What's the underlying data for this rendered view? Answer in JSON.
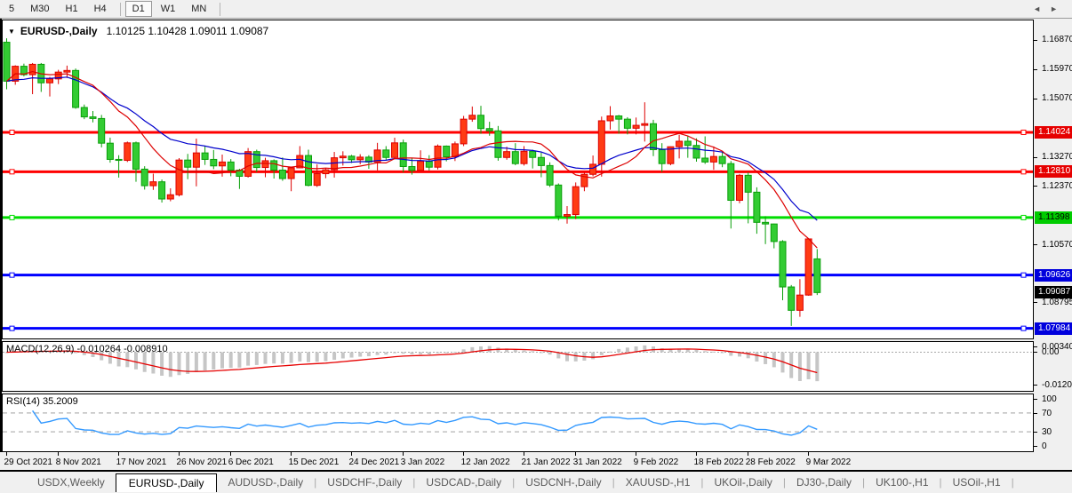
{
  "toolbar": {
    "timeframes": [
      {
        "label": "5",
        "active": false,
        "divider_after": false
      },
      {
        "label": "M30",
        "active": false,
        "divider_after": false
      },
      {
        "label": "H1",
        "active": false,
        "divider_after": false
      },
      {
        "label": "H4",
        "active": false,
        "divider_after": true
      },
      {
        "label": "D1",
        "active": true,
        "divider_after": false
      },
      {
        "label": "W1",
        "active": false,
        "divider_after": false
      },
      {
        "label": "MN",
        "active": false,
        "divider_after": true
      }
    ]
  },
  "chart": {
    "symbol": "EURUSD-,Daily",
    "ohlc_text": "1.10125 1.10428 1.09011 1.09087"
  },
  "chart_data": {
    "type": "candlestick",
    "symbol": "EURUSD-,Daily",
    "colors": {
      "bull_fill": "#ff3b14",
      "bull_stroke": "#dd0000",
      "bear_fill": "#33cc33",
      "bear_stroke": "#0a9e0a",
      "ma_fast": "#dd0000",
      "ma_slow": "#0000cc",
      "macd_hist": "#c6c6c6",
      "macd_signal": "#e60000",
      "rsi_line": "#3399ff",
      "level_dash": "#c0c0c0"
    },
    "ohlc": [
      [
        1.168,
        1.1692,
        1.1535,
        1.156
      ],
      [
        1.156,
        1.1609,
        1.1549,
        1.1606
      ],
      [
        1.1606,
        1.1614,
        1.1575,
        1.158
      ],
      [
        1.158,
        1.1616,
        1.152,
        1.1612
      ],
      [
        1.1612,
        1.1616,
        1.1527,
        1.1555
      ],
      [
        1.1555,
        1.1573,
        1.1513,
        1.1567
      ],
      [
        1.1567,
        1.1595,
        1.1551,
        1.1588
      ],
      [
        1.1588,
        1.1608,
        1.157,
        1.1593
      ],
      [
        1.1593,
        1.1599,
        1.1475,
        1.1479
      ],
      [
        1.1479,
        1.1488,
        1.1443,
        1.145
      ],
      [
        1.145,
        1.1468,
        1.1433,
        1.1445
      ],
      [
        1.1445,
        1.1456,
        1.1356,
        1.1369
      ],
      [
        1.1369,
        1.1386,
        1.1309,
        1.1319
      ],
      [
        1.1319,
        1.1332,
        1.1263,
        1.1316
      ],
      [
        1.1316,
        1.1374,
        1.1311,
        1.137
      ],
      [
        1.137,
        1.1374,
        1.125,
        1.1289
      ],
      [
        1.1289,
        1.1298,
        1.1226,
        1.1238
      ],
      [
        1.1238,
        1.1275,
        1.1225,
        1.125
      ],
      [
        1.125,
        1.1257,
        1.1186,
        1.1197
      ],
      [
        1.1197,
        1.123,
        1.119,
        1.121
      ],
      [
        1.121,
        1.1323,
        1.1205,
        1.1317
      ],
      [
        1.1317,
        1.1336,
        1.1258,
        1.1295
      ],
      [
        1.1295,
        1.1383,
        1.1236,
        1.1339
      ],
      [
        1.1339,
        1.136,
        1.1302,
        1.1319
      ],
      [
        1.1319,
        1.1348,
        1.1289,
        1.1299
      ],
      [
        1.1299,
        1.1334,
        1.1266,
        1.1311
      ],
      [
        1.1311,
        1.132,
        1.1267,
        1.1286
      ],
      [
        1.1286,
        1.129,
        1.1228,
        1.1267
      ],
      [
        1.1267,
        1.1354,
        1.1263,
        1.1343
      ],
      [
        1.1343,
        1.1349,
        1.128,
        1.1294
      ],
      [
        1.1294,
        1.1324,
        1.1264,
        1.1315
      ],
      [
        1.1315,
        1.1319,
        1.126,
        1.1286
      ],
      [
        1.1286,
        1.1325,
        1.1253,
        1.126
      ],
      [
        1.126,
        1.1296,
        1.1221,
        1.1293
      ],
      [
        1.1293,
        1.136,
        1.1292,
        1.1331
      ],
      [
        1.1331,
        1.1349,
        1.1236,
        1.1239
      ],
      [
        1.1239,
        1.1304,
        1.1234,
        1.1275
      ],
      [
        1.1275,
        1.1292,
        1.1261,
        1.1287
      ],
      [
        1.1287,
        1.1342,
        1.1263,
        1.1324
      ],
      [
        1.1324,
        1.1344,
        1.13,
        1.1329
      ],
      [
        1.1329,
        1.1333,
        1.1308,
        1.1318
      ],
      [
        1.1318,
        1.1335,
        1.1304,
        1.1326
      ],
      [
        1.1326,
        1.1332,
        1.129,
        1.1311
      ],
      [
        1.1311,
        1.137,
        1.1285,
        1.1348
      ],
      [
        1.1348,
        1.136,
        1.1316,
        1.1325
      ],
      [
        1.1325,
        1.1386,
        1.1321,
        1.137
      ],
      [
        1.137,
        1.138,
        1.1279,
        1.1297
      ],
      [
        1.1297,
        1.1323,
        1.1272,
        1.1285
      ],
      [
        1.1285,
        1.1347,
        1.1284,
        1.1313
      ],
      [
        1.1313,
        1.1332,
        1.1285,
        1.1295
      ],
      [
        1.1295,
        1.1365,
        1.1288,
        1.136
      ],
      [
        1.136,
        1.1362,
        1.1313,
        1.1327
      ],
      [
        1.1327,
        1.1374,
        1.1314,
        1.1367
      ],
      [
        1.1367,
        1.1453,
        1.136,
        1.1443
      ],
      [
        1.1443,
        1.1482,
        1.1435,
        1.1455
      ],
      [
        1.1455,
        1.1484,
        1.1398,
        1.1414
      ],
      [
        1.1414,
        1.1435,
        1.1392,
        1.1407
      ],
      [
        1.1407,
        1.1422,
        1.1315,
        1.1325
      ],
      [
        1.1325,
        1.1358,
        1.1318,
        1.1343
      ],
      [
        1.1343,
        1.1369,
        1.1301,
        1.1306
      ],
      [
        1.1306,
        1.136,
        1.13,
        1.1344
      ],
      [
        1.1344,
        1.1349,
        1.1291,
        1.1325
      ],
      [
        1.1325,
        1.134,
        1.1264,
        1.13
      ],
      [
        1.13,
        1.131,
        1.1234,
        1.124
      ],
      [
        1.124,
        1.1245,
        1.1131,
        1.1144
      ],
      [
        1.1144,
        1.1175,
        1.1121,
        1.1149
      ],
      [
        1.1149,
        1.1248,
        1.1135,
        1.1235
      ],
      [
        1.1235,
        1.1279,
        1.1221,
        1.1273
      ],
      [
        1.1273,
        1.1331,
        1.1267,
        1.1304
      ],
      [
        1.1304,
        1.1451,
        1.1266,
        1.1438
      ],
      [
        1.1438,
        1.1483,
        1.1411,
        1.1453
      ],
      [
        1.1453,
        1.1456,
        1.1398,
        1.1443
      ],
      [
        1.1443,
        1.1449,
        1.1396,
        1.1415
      ],
      [
        1.1415,
        1.1448,
        1.1396,
        1.1424
      ],
      [
        1.1424,
        1.1495,
        1.1374,
        1.1429
      ],
      [
        1.1429,
        1.1441,
        1.1329,
        1.1349
      ],
      [
        1.1349,
        1.1369,
        1.128,
        1.1306
      ],
      [
        1.1306,
        1.1359,
        1.1301,
        1.1358
      ],
      [
        1.1358,
        1.1395,
        1.1322,
        1.1375
      ],
      [
        1.1375,
        1.1392,
        1.1324,
        1.1362
      ],
      [
        1.1362,
        1.1384,
        1.1312,
        1.1323
      ],
      [
        1.1323,
        1.139,
        1.1305,
        1.1311
      ],
      [
        1.1311,
        1.1359,
        1.1287,
        1.1328
      ],
      [
        1.1328,
        1.1344,
        1.1295,
        1.1306
      ],
      [
        1.1306,
        1.1314,
        1.1106,
        1.1193
      ],
      [
        1.1193,
        1.1274,
        1.1184,
        1.127
      ],
      [
        1.127,
        1.1279,
        1.1122,
        1.1218
      ],
      [
        1.1218,
        1.1233,
        1.109,
        1.1125
      ],
      [
        1.1125,
        1.1144,
        1.1058,
        1.112
      ],
      [
        1.112,
        1.1121,
        1.1045,
        1.1066
      ],
      [
        1.1066,
        1.107,
        1.0885,
        1.0926
      ],
      [
        1.0926,
        1.0932,
        1.0806,
        1.0854
      ],
      [
        1.0854,
        1.095,
        1.0834,
        1.0901
      ],
      [
        1.0901,
        1.1074,
        1.0899,
        1.1074
      ],
      [
        1.10125,
        1.10428,
        1.09011,
        1.09087
      ]
    ],
    "dates": {
      "labels": [
        "29 Oct 2021",
        "8 Nov 2021",
        "17 Nov 2021",
        "26 Nov 2021",
        "6 Dec 2021",
        "15 Dec 2021",
        "24 Dec 2021",
        "3 Jan 2022",
        "12 Jan 2022",
        "21 Jan 2022",
        "31 Jan 2022",
        "9 Feb 2022",
        "18 Feb 2022",
        "28 Feb 2022",
        "9 Mar 2022"
      ],
      "indices": [
        0,
        6,
        13,
        20,
        26,
        33,
        40,
        46,
        53,
        60,
        66,
        73,
        80,
        86,
        93
      ]
    },
    "price_axis": {
      "ticks": [
        {
          "label": "1.16870",
          "price": 1.1687
        },
        {
          "label": "1.15970",
          "price": 1.1597
        },
        {
          "label": "1.15070",
          "price": 1.1507
        },
        {
          "label": "1.13270",
          "price": 1.1327
        },
        {
          "label": "1.12370",
          "price": 1.1237
        },
        {
          "label": "1.10570",
          "price": 1.1057
        },
        {
          "label": "1.08795",
          "price": 1.08795
        }
      ],
      "badges": [
        {
          "label": "1.14024",
          "price": 1.14024,
          "bg": "#e60000",
          "fg": "#ffffff"
        },
        {
          "label": "1.12810",
          "price": 1.1281,
          "bg": "#e60000",
          "fg": "#ffffff"
        },
        {
          "label": "1.11398",
          "price": 1.11398,
          "bg": "#00cc00",
          "fg": "#000000"
        },
        {
          "label": "1.09626",
          "price": 1.09626,
          "bg": "#0000dd",
          "fg": "#ffffff"
        },
        {
          "label": "1.09087",
          "price": 1.09087,
          "bg": "#000000",
          "fg": "#ffffff"
        },
        {
          "label": "1.07984",
          "price": 1.07984,
          "bg": "#0000dd",
          "fg": "#ffffff"
        }
      ]
    },
    "hlines": [
      {
        "price": 1.14024,
        "color": "#ff0000",
        "width": 3
      },
      {
        "price": 1.1281,
        "color": "#ff0000",
        "width": 3
      },
      {
        "price": 1.11398,
        "color": "#00dd00",
        "width": 3
      },
      {
        "price": 1.09626,
        "color": "#0000ff",
        "width": 3
      },
      {
        "price": 1.07984,
        "color": "#0000ff",
        "width": 3
      }
    ],
    "moving_averages": [
      {
        "name": "slow-ma",
        "type": "ema",
        "period": 20,
        "color": "#0000cc"
      },
      {
        "name": "fast-ma",
        "type": "sma",
        "period": 10,
        "color": "#dd0000"
      }
    ],
    "macd": {
      "label": "MACD(12,26,9) -0.010264 -0.008910",
      "fast": 12,
      "slow": 26,
      "signal": 9,
      "current": -0.010264,
      "current_signal": -0.00891,
      "axis": [
        {
          "label": "0.003408",
          "value": 0.003408
        },
        {
          "label": "0.00",
          "value": 0
        },
        {
          "label": "-0.01205",
          "value": -0.01205
        }
      ]
    },
    "rsi": {
      "label": "RSI(14) 35.2009",
      "period": 14,
      "current": 35.2009,
      "levels": [
        70,
        30
      ],
      "axis": [
        {
          "label": "100",
          "value": 100
        },
        {
          "label": "70",
          "value": 70
        },
        {
          "label": "30",
          "value": 30
        },
        {
          "label": "0",
          "value": 0
        }
      ]
    }
  },
  "tabs": {
    "items": [
      "USDX,Weekly",
      "EURUSD-,Daily",
      "AUDUSD-,Daily",
      "USDCHF-,Daily",
      "USDCAD-,Daily",
      "USDCNH-,Daily",
      "XAUUSD-,H1",
      "UKOil-,Daily",
      "DJ30-,Daily",
      "UK100-,H1",
      "USOil-,H1"
    ],
    "active": "EURUSD-,Daily",
    "scroll_left": "◄",
    "scroll_right": "►"
  }
}
